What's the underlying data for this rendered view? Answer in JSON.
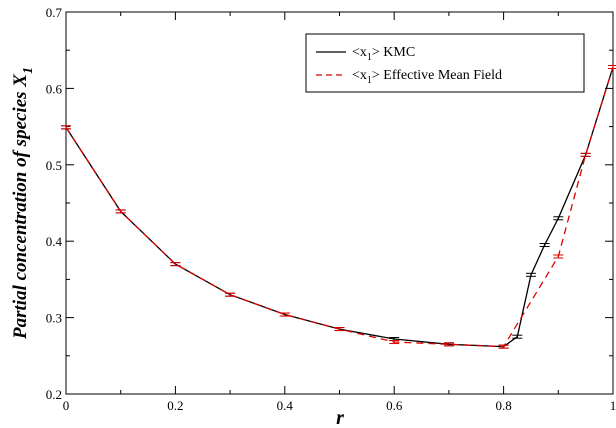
{
  "chart_data": {
    "type": "line",
    "title": "",
    "xlabel": "r",
    "ylabel": "Partial concentration of species X",
    "ylabel_subscript": "1",
    "xlim": [
      0,
      1
    ],
    "ylim": [
      0.2,
      0.7
    ],
    "x_ticks": [
      0,
      0.2,
      0.4,
      0.6,
      0.8,
      1
    ],
    "x_tick_labels": [
      "0",
      "0.2",
      "0.4",
      "0.6",
      "0.8",
      "1"
    ],
    "y_ticks": [
      0.2,
      0.3,
      0.4,
      0.5,
      0.6,
      0.7
    ],
    "y_tick_labels": [
      "0.2",
      "0.3",
      "0.4",
      "0.5",
      "0.6",
      "0.7"
    ],
    "grid": false,
    "legend_position": "top-right",
    "series": [
      {
        "name_prefix": "<x",
        "name_subscript": "1",
        "name_suffix": "> KMC",
        "color": "#000000",
        "dash": "solid",
        "x": [
          0,
          0.1,
          0.2,
          0.3,
          0.4,
          0.5,
          0.6,
          0.7,
          0.8,
          0.825,
          0.85,
          0.875,
          0.9,
          0.95,
          1.0
        ],
        "y": [
          0.549,
          0.439,
          0.37,
          0.33,
          0.304,
          0.285,
          0.272,
          0.265,
          0.262,
          0.275,
          0.356,
          0.395,
          0.43,
          0.513,
          0.628
        ]
      },
      {
        "name_prefix": "<x",
        "name_subscript": "1",
        "name_suffix": "> Effective Mean Field",
        "color": "#dd0000",
        "dash": "dashed",
        "x": [
          0,
          0.1,
          0.2,
          0.3,
          0.4,
          0.5,
          0.6,
          0.7,
          0.8,
          0.9,
          0.95,
          1.0
        ],
        "y": [
          0.549,
          0.439,
          0.37,
          0.33,
          0.304,
          0.285,
          0.268,
          0.265,
          0.262,
          0.38,
          0.513,
          0.628
        ]
      }
    ]
  }
}
